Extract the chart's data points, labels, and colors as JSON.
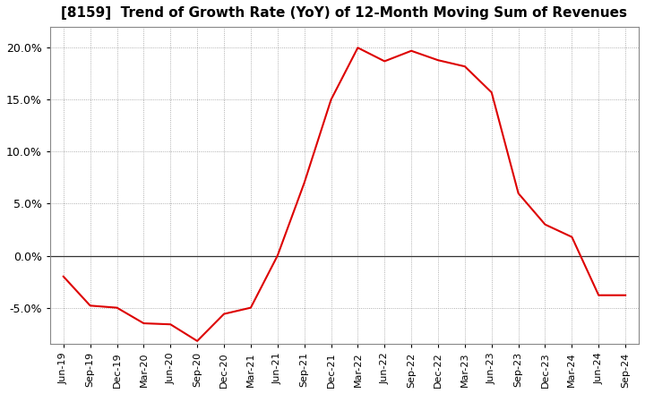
{
  "title": "[8159]  Trend of Growth Rate (YoY) of 12-Month Moving Sum of Revenues",
  "line_color": "#dd0000",
  "background_color": "#ffffff",
  "plot_bg_color": "#ffffff",
  "grid_color": "#999999",
  "ylim": [
    -0.085,
    0.22
  ],
  "yticks": [
    -0.05,
    0.0,
    0.05,
    0.1,
    0.15,
    0.2
  ],
  "x_labels": [
    "Jun-19",
    "Sep-19",
    "Dec-19",
    "Mar-20",
    "Jun-20",
    "Sep-20",
    "Dec-20",
    "Mar-21",
    "Jun-21",
    "Sep-21",
    "Dec-21",
    "Mar-22",
    "Jun-22",
    "Sep-22",
    "Dec-22",
    "Mar-23",
    "Jun-23",
    "Sep-23",
    "Dec-23",
    "Mar-24",
    "Jun-24",
    "Sep-24"
  ],
  "values": [
    -0.02,
    -0.048,
    -0.05,
    -0.065,
    -0.066,
    -0.082,
    -0.056,
    -0.05,
    0.0,
    0.07,
    0.15,
    0.2,
    0.187,
    0.197,
    0.188,
    0.182,
    0.157,
    0.06,
    0.03,
    0.018,
    -0.038,
    -0.038
  ]
}
